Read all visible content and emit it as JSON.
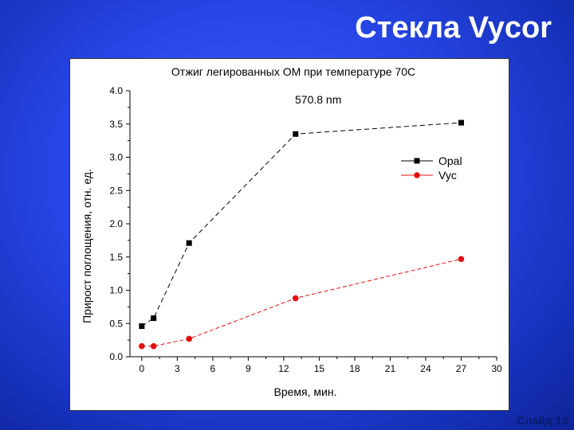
{
  "slide": {
    "title": "Стекла Vycor",
    "number_label": "Слайд 13"
  },
  "chart_data": {
    "type": "line",
    "title": "Отжиг легированных ОМ при температуре 70С",
    "annotation": "570.8 nm",
    "xlabel": "Время, мин.",
    "ylabel": "Прирост поглощения, отн. ед.",
    "xlim": [
      -1,
      30
    ],
    "ylim": [
      0,
      4.0
    ],
    "xticks": [
      0,
      3,
      6,
      9,
      12,
      15,
      18,
      21,
      24,
      27,
      30
    ],
    "yticks": [
      "0.0",
      "0.5",
      "1.0",
      "1.5",
      "2.0",
      "2.5",
      "3.0",
      "3.5",
      "4.0"
    ],
    "legend_position": "right",
    "series": [
      {
        "name": "Opal",
        "color": "#000000",
        "marker": "square",
        "x": [
          0,
          1,
          4,
          13,
          27
        ],
        "y": [
          0.46,
          0.58,
          1.71,
          3.35,
          3.52
        ]
      },
      {
        "name": "Vyc",
        "color": "#e01010",
        "marker": "circle",
        "x": [
          0,
          1,
          4,
          13,
          27
        ],
        "y": [
          0.16,
          0.16,
          0.27,
          0.88,
          1.47
        ]
      }
    ]
  }
}
